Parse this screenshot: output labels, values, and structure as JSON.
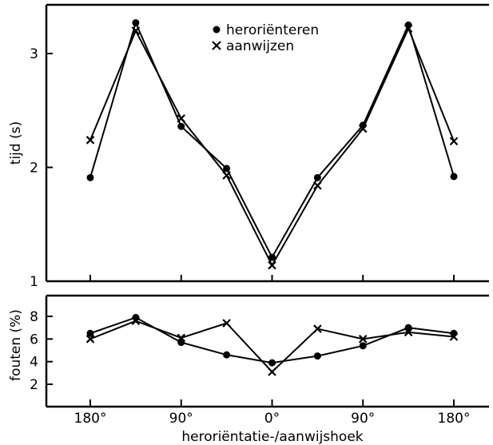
{
  "chart_data": [
    {
      "type": "line",
      "ylabel": "tijd (s)",
      "ylim": [
        1,
        3.35
      ],
      "yticks": [
        1,
        2,
        3
      ],
      "x": [
        -180,
        -135,
        -90,
        -45,
        0,
        45,
        90,
        135,
        180
      ],
      "series": [
        {
          "name": "heroriënteren",
          "marker": "dot",
          "values": [
            1.91,
            3.27,
            2.36,
            1.99,
            1.21,
            1.91,
            2.37,
            3.25,
            1.92
          ]
        },
        {
          "name": "aanwijzen",
          "marker": "cross",
          "values": [
            2.24,
            3.2,
            2.43,
            1.93,
            1.14,
            1.84,
            2.34,
            3.22,
            2.23
          ]
        }
      ],
      "legend": {
        "position": "top-center",
        "entries": [
          "heroriënteren",
          "aanwijzen"
        ]
      }
    },
    {
      "type": "line",
      "ylabel": "fouten (%)",
      "ylim": [
        0,
        10
      ],
      "yticks": [
        2,
        4,
        6,
        8
      ],
      "x": [
        -180,
        -135,
        -90,
        -45,
        0,
        45,
        90,
        135,
        180
      ],
      "xticks": [
        -180,
        -90,
        0,
        90,
        180
      ],
      "xticklabels": [
        "180°",
        "90°",
        "0°",
        "90°",
        "180°"
      ],
      "xlabel": "heroriëntatie-/aanwijshoek",
      "series": [
        {
          "name": "heroriënteren",
          "marker": "dot",
          "values": [
            6.5,
            7.9,
            5.7,
            4.6,
            3.9,
            4.5,
            5.4,
            7.0,
            6.5
          ]
        },
        {
          "name": "aanwijzen",
          "marker": "cross",
          "values": [
            6.0,
            7.6,
            6.1,
            7.4,
            3.1,
            6.9,
            6.0,
            6.6,
            6.2
          ]
        }
      ]
    }
  ]
}
